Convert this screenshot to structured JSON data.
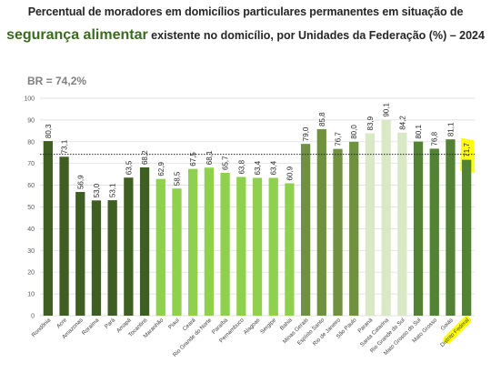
{
  "header": {
    "title_line1": "Percentual de moradores em domicílios particulares permanentes em situação de",
    "title_highlight": "segurança alimentar",
    "title_rest": " existente no domicílio, por Unidades da Federação (%) – 2024"
  },
  "chart_data": {
    "type": "bar",
    "title": "Percentual de moradores em domicílios particulares permanentes em situação de segurança alimentar existente no domicílio, por Unidades da Federação (%) – 2024",
    "xlabel": "",
    "ylabel": "",
    "ylim": [
      0,
      100
    ],
    "yticks": [
      0,
      10,
      20,
      30,
      40,
      50,
      60,
      70,
      80,
      90,
      100
    ],
    "grid": true,
    "reference_line": {
      "label": "BR = 74,2%",
      "value": 74.2
    },
    "categories": [
      "Rondônia",
      "Acre",
      "Amazonas",
      "Roraima",
      "Pará",
      "Amapá",
      "Tocantins",
      "Maranhão",
      "Piauí",
      "Ceará",
      "Rio Grande do Norte",
      "Paraíba",
      "Pernambuco",
      "Alagoas",
      "Sergipe",
      "Bahia",
      "Minas Gerais",
      "Espírito Santo",
      "Rio de Janeiro",
      "São Paulo",
      "Paraná",
      "Santa Catarina",
      "Rio Grande do Sul",
      "Mato Grosso do Sul",
      "Mato Grosso",
      "Goiás",
      "Distrito Federal"
    ],
    "values": [
      80.3,
      73.1,
      56.9,
      53.0,
      53.1,
      63.5,
      68.2,
      62.9,
      58.5,
      67.5,
      68.1,
      65.7,
      63.8,
      63.4,
      63.4,
      60.9,
      79.0,
      85.8,
      76.7,
      80.0,
      83.9,
      90.1,
      84.2,
      80.1,
      76.8,
      81.1,
      71.7
    ],
    "value_labels": [
      "80,3",
      "73,1",
      "56,9",
      "53,0",
      "53,1",
      "63,5",
      "68,2",
      "62,9",
      "58,5",
      "67,5",
      "68,1",
      "65,7",
      "63,8",
      "63,4",
      "63,4",
      "60,9",
      "79,0",
      "85,8",
      "76,7",
      "80,0",
      "83,9",
      "90,1",
      "84,2",
      "80,1",
      "76,8",
      "81,1",
      "71,7"
    ],
    "colors": [
      "#3f5e21",
      "#3f5e21",
      "#3f5e21",
      "#3f5e21",
      "#3f5e21",
      "#3f5e21",
      "#3f5e21",
      "#8fd14f",
      "#8fd14f",
      "#8fd14f",
      "#8fd14f",
      "#8fd14f",
      "#8fd14f",
      "#8fd14f",
      "#8fd14f",
      "#8fd14f",
      "#70913f",
      "#70913f",
      "#70913f",
      "#70913f",
      "#d9e9c5",
      "#d9e9c5",
      "#d9e9c5",
      "#548235",
      "#548235",
      "#548235",
      "#548235"
    ],
    "highlighted_category": "Distrito Federal",
    "highlight_color": "#ffff00"
  }
}
